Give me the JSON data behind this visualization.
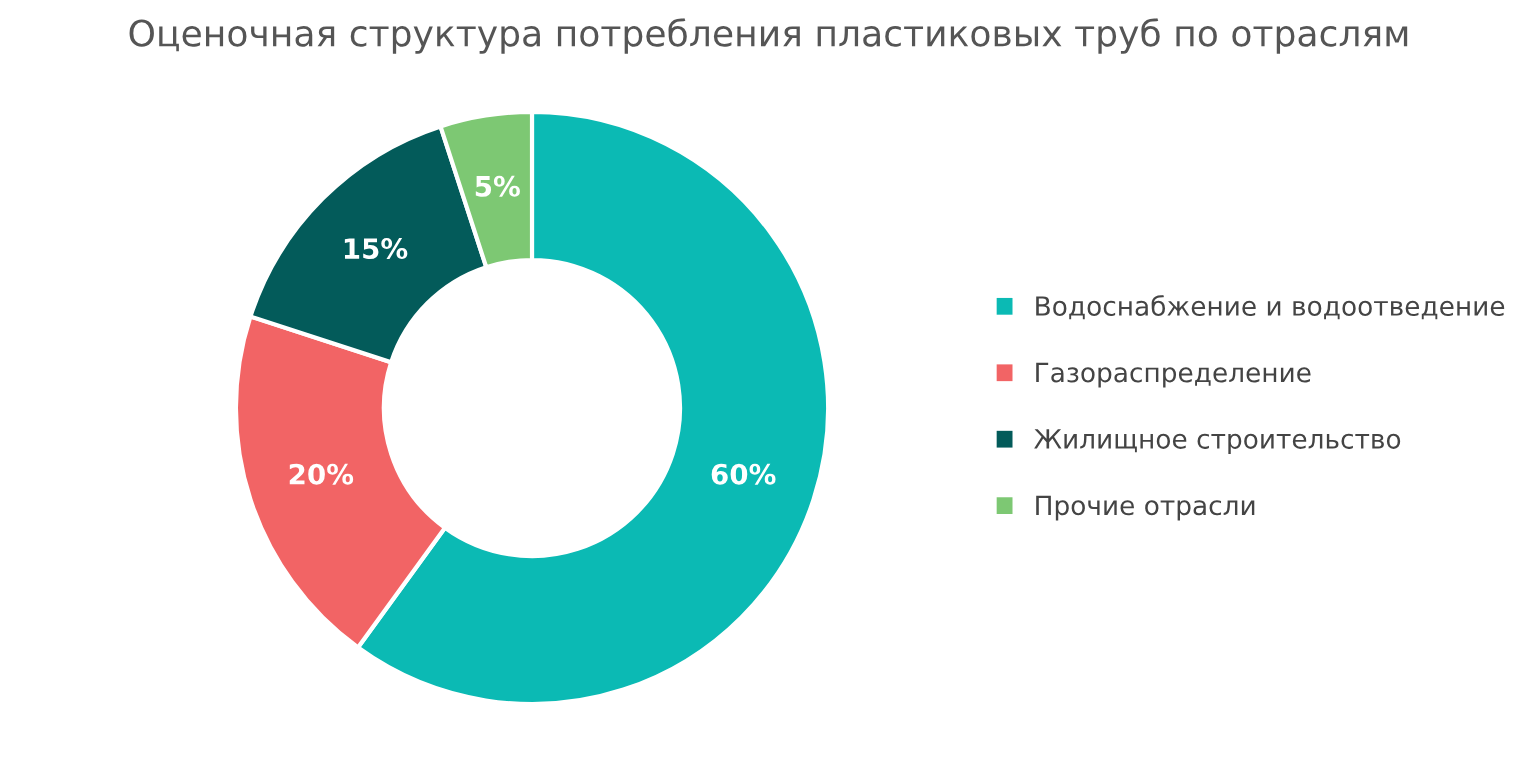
{
  "chart_data": {
    "type": "donut",
    "title": "Оценочная структура потребления пластиковых труб по отраслям",
    "categories": [
      "Водоснабжение и водоотведение",
      "Газораспределение",
      "Жилищное строительство",
      "Прочие отрасли"
    ],
    "values": [
      60,
      20,
      15,
      5
    ],
    "colors": [
      "#0bbab4",
      "#f26465",
      "#035b5a",
      "#7dc873"
    ],
    "value_labels": [
      "60%",
      "20%",
      "15%",
      "5%"
    ],
    "legend": "right"
  }
}
